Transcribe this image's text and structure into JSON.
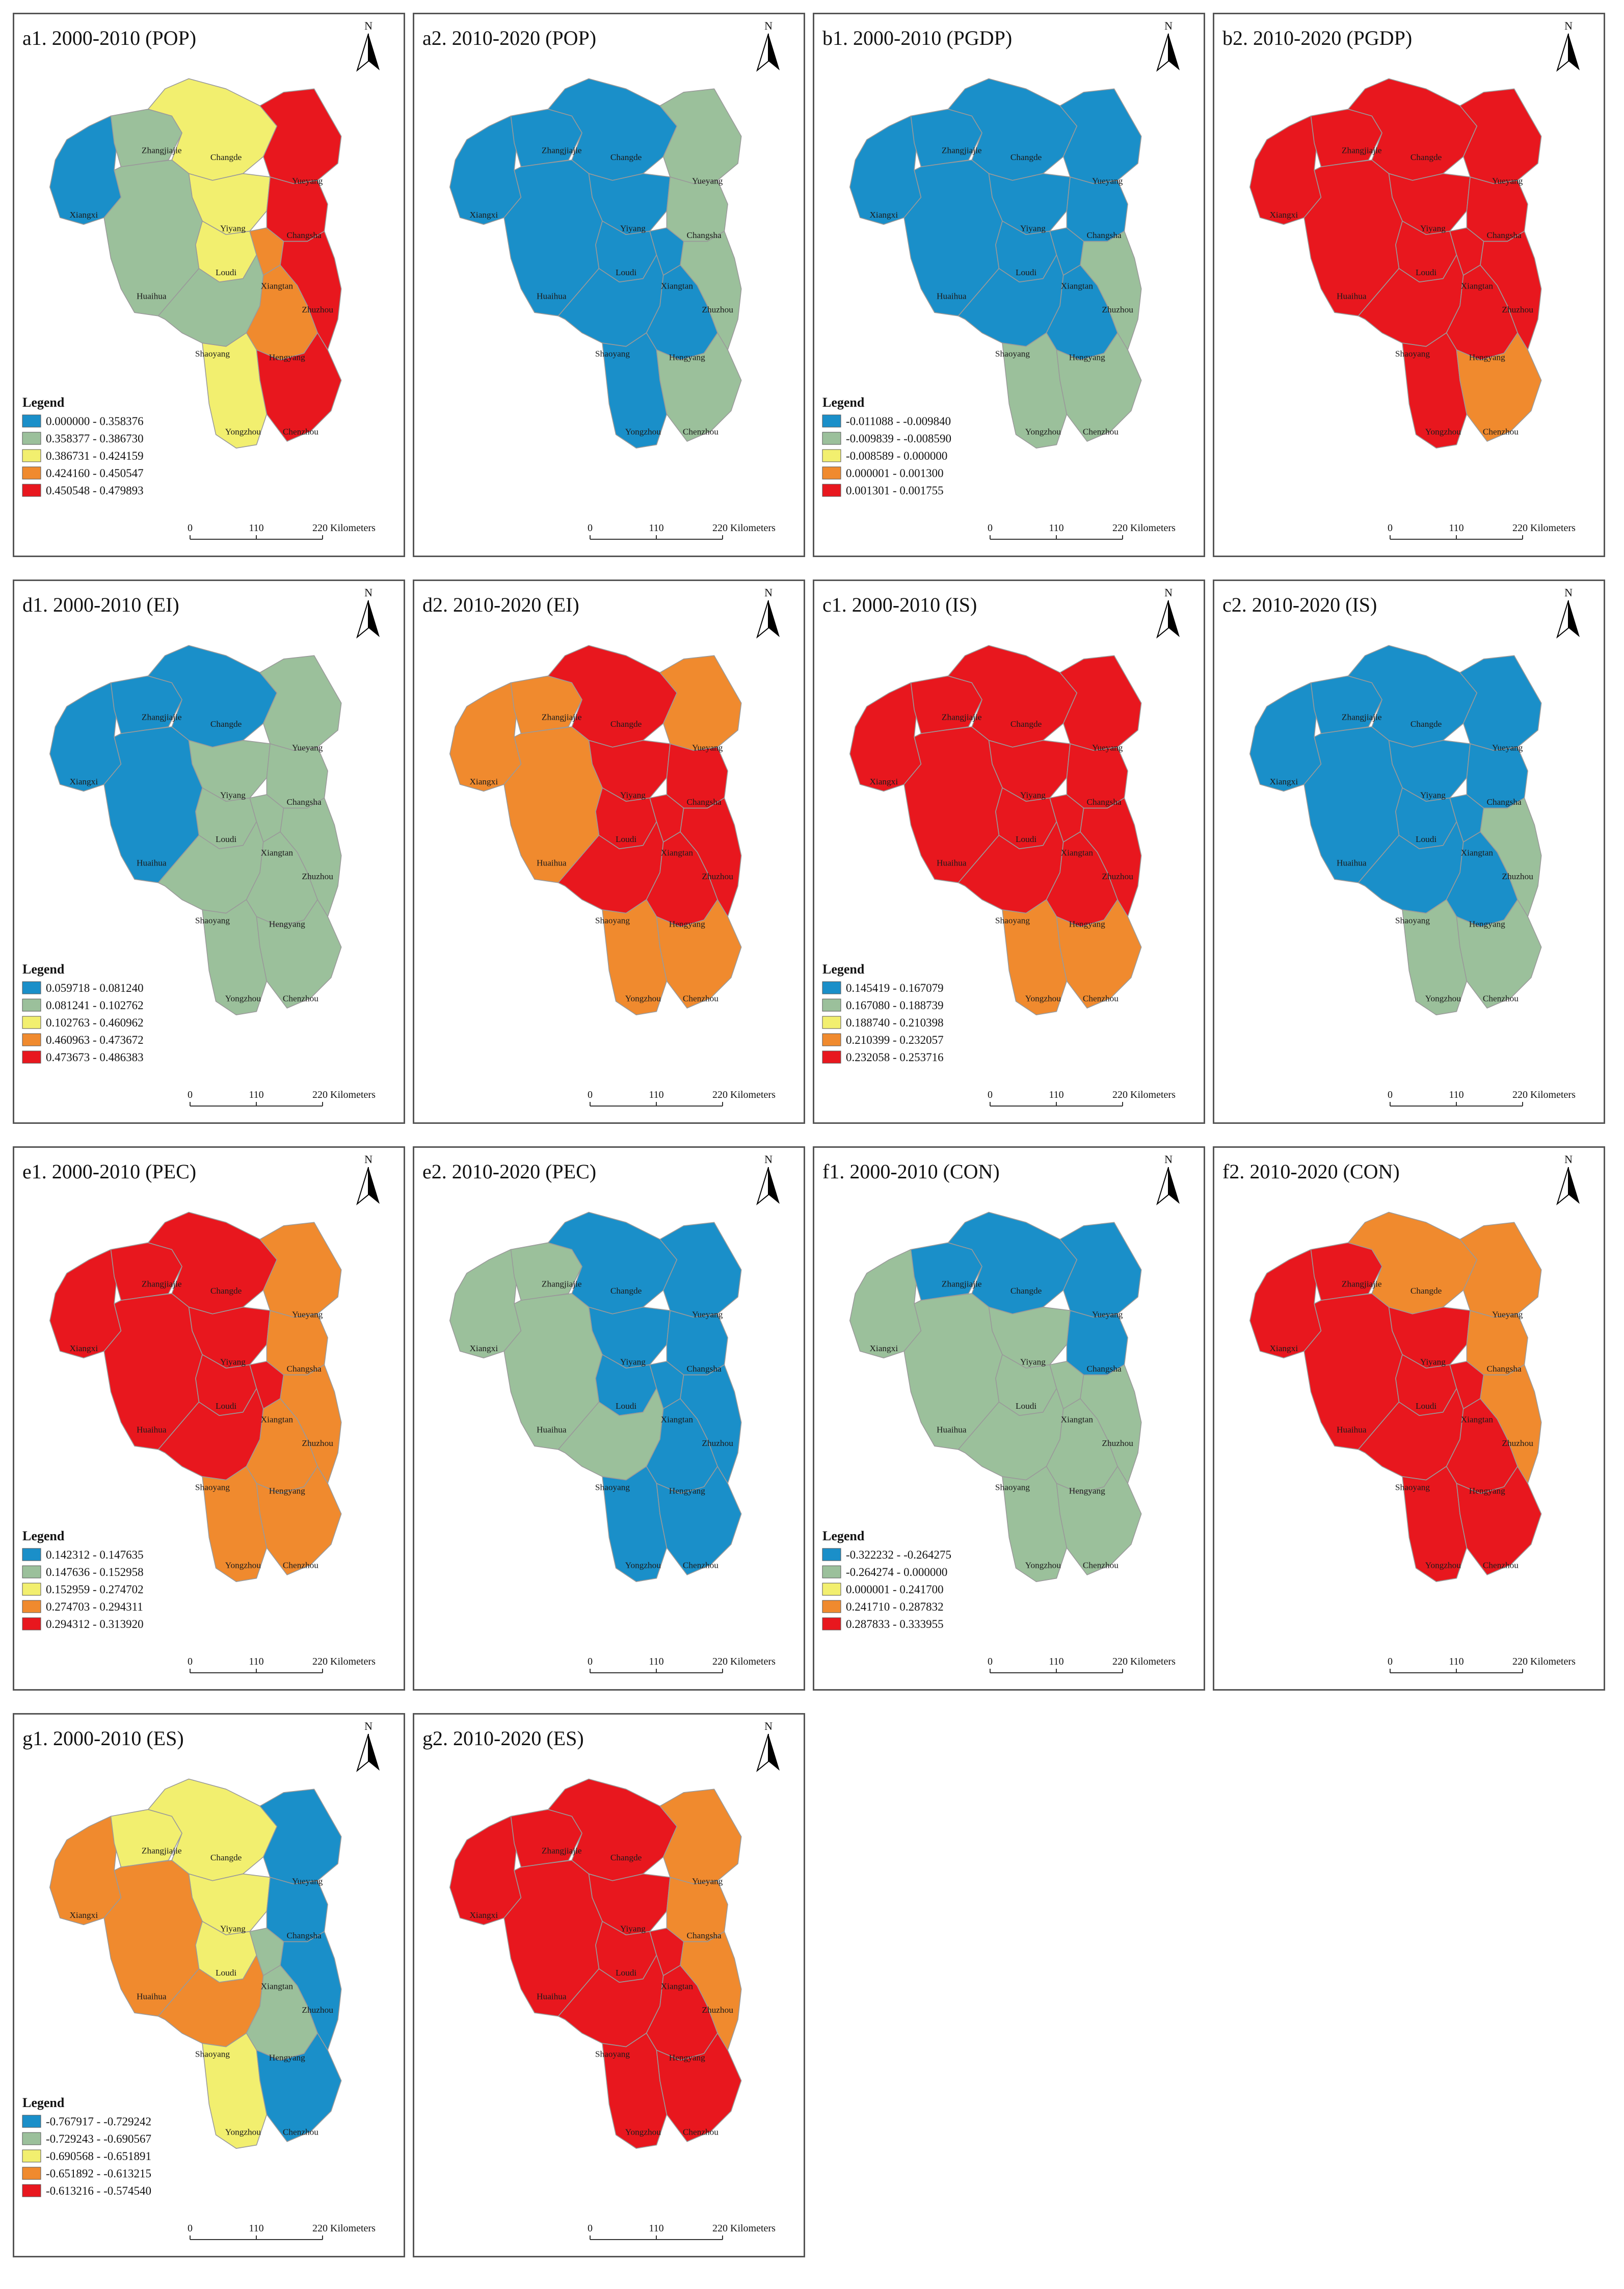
{
  "palette": {
    "blue": "#1a8fc9",
    "green": "#9bc09b",
    "yellow": "#f2ef6f",
    "orange": "#f08a2e",
    "red": "#e8171e"
  },
  "common": {
    "legend_heading": "Legend",
    "north_label": "N",
    "scale_labels": [
      "0",
      "110",
      "220 Kilometers"
    ]
  },
  "cities": [
    "Xiangxi",
    "Zhangjiajie",
    "Changde",
    "Yueyang",
    "Yiyang",
    "Changsha",
    "Loudi",
    "Huaihua",
    "Xiangtan",
    "Zhuzhou",
    "Shaoyang",
    "Hengyang",
    "Yongzhou",
    "Chenzhou"
  ],
  "panels": [
    {
      "id": "a1",
      "title": "a1. 2000-2010 (POP)",
      "legend": [
        "0.000000 - 0.358376",
        "0.358377 - 0.386730",
        "0.386731 - 0.424159",
        "0.424160 - 0.450547",
        "0.450548 - 0.479893"
      ],
      "classes": {
        "Xiangxi": "blue",
        "Zhangjiajie": "green",
        "Changde": "yellow",
        "Yueyang": "red",
        "Yiyang": "yellow",
        "Changsha": "red",
        "Loudi": "yellow",
        "Huaihua": "green",
        "Xiangtan": "orange",
        "Zhuzhou": "red",
        "Shaoyang": "green",
        "Hengyang": "orange",
        "Yongzhou": "yellow",
        "Chenzhou": "red"
      }
    },
    {
      "id": "a2",
      "title": "a2. 2010-2020 (POP)",
      "legend": [],
      "classes": {
        "Xiangxi": "blue",
        "Zhangjiajie": "blue",
        "Changde": "blue",
        "Yueyang": "green",
        "Yiyang": "blue",
        "Changsha": "green",
        "Loudi": "blue",
        "Huaihua": "blue",
        "Xiangtan": "blue",
        "Zhuzhou": "green",
        "Shaoyang": "blue",
        "Hengyang": "blue",
        "Yongzhou": "blue",
        "Chenzhou": "green"
      }
    },
    {
      "id": "b1",
      "title": "b1. 2000-2010 (PGDP)",
      "legend": [
        "-0.011088 - -0.009840",
        "-0.009839 - -0.008590",
        "-0.008589 - 0.000000",
        "0.000001 - 0.001300",
        "0.001301 - 0.001755"
      ],
      "classes": {
        "Xiangxi": "blue",
        "Zhangjiajie": "blue",
        "Changde": "blue",
        "Yueyang": "blue",
        "Yiyang": "blue",
        "Changsha": "blue",
        "Loudi": "blue",
        "Huaihua": "blue",
        "Xiangtan": "blue",
        "Zhuzhou": "green",
        "Shaoyang": "blue",
        "Hengyang": "blue",
        "Yongzhou": "green",
        "Chenzhou": "green"
      }
    },
    {
      "id": "b2",
      "title": "b2. 2010-2020 (PGDP)",
      "legend": [],
      "classes": {
        "Xiangxi": "red",
        "Zhangjiajie": "red",
        "Changde": "red",
        "Yueyang": "red",
        "Yiyang": "red",
        "Changsha": "red",
        "Loudi": "red",
        "Huaihua": "red",
        "Xiangtan": "red",
        "Zhuzhou": "red",
        "Shaoyang": "red",
        "Hengyang": "red",
        "Yongzhou": "red",
        "Chenzhou": "orange"
      }
    },
    {
      "id": "d1",
      "title": "d1. 2000-2010 (EI)",
      "legend": [
        "0.059718 - 0.081240",
        "0.081241 - 0.102762",
        "0.102763 - 0.460962",
        "0.460963 - 0.473672",
        "0.473673 - 0.486383"
      ],
      "classes": {
        "Xiangxi": "blue",
        "Zhangjiajie": "blue",
        "Changde": "blue",
        "Yueyang": "green",
        "Yiyang": "green",
        "Changsha": "green",
        "Loudi": "green",
        "Huaihua": "blue",
        "Xiangtan": "green",
        "Zhuzhou": "green",
        "Shaoyang": "green",
        "Hengyang": "green",
        "Yongzhou": "green",
        "Chenzhou": "green"
      }
    },
    {
      "id": "d2",
      "title": "d2. 2010-2020 (EI)",
      "legend": [],
      "classes": {
        "Xiangxi": "orange",
        "Zhangjiajie": "orange",
        "Changde": "red",
        "Yueyang": "orange",
        "Yiyang": "red",
        "Changsha": "red",
        "Loudi": "red",
        "Huaihua": "orange",
        "Xiangtan": "red",
        "Zhuzhou": "red",
        "Shaoyang": "red",
        "Hengyang": "red",
        "Yongzhou": "orange",
        "Chenzhou": "orange"
      }
    },
    {
      "id": "c1",
      "title": "c1. 2000-2010 (IS)",
      "legend": [
        "0.145419 - 0.167079",
        "0.167080 - 0.188739",
        "0.188740 - 0.210398",
        "0.210399 - 0.232057",
        "0.232058 - 0.253716"
      ],
      "classes": {
        "Xiangxi": "red",
        "Zhangjiajie": "red",
        "Changde": "red",
        "Yueyang": "red",
        "Yiyang": "red",
        "Changsha": "red",
        "Loudi": "red",
        "Huaihua": "red",
        "Xiangtan": "red",
        "Zhuzhou": "red",
        "Shaoyang": "red",
        "Hengyang": "red",
        "Yongzhou": "orange",
        "Chenzhou": "orange"
      }
    },
    {
      "id": "c2",
      "title": "c2. 2010-2020 (IS)",
      "legend": [],
      "classes": {
        "Xiangxi": "blue",
        "Zhangjiajie": "blue",
        "Changde": "blue",
        "Yueyang": "blue",
        "Yiyang": "blue",
        "Changsha": "blue",
        "Loudi": "blue",
        "Huaihua": "blue",
        "Xiangtan": "blue",
        "Zhuzhou": "green",
        "Shaoyang": "blue",
        "Hengyang": "blue",
        "Yongzhou": "green",
        "Chenzhou": "green"
      }
    },
    {
      "id": "e1",
      "title": "e1. 2000-2010 (PEC)",
      "legend": [
        "0.142312 - 0.147635",
        "0.147636 - 0.152958",
        "0.152959 - 0.274702",
        "0.274703 - 0.294311",
        "0.294312 - 0.313920"
      ],
      "classes": {
        "Xiangxi": "red",
        "Zhangjiajie": "red",
        "Changde": "red",
        "Yueyang": "orange",
        "Yiyang": "red",
        "Changsha": "orange",
        "Loudi": "red",
        "Huaihua": "red",
        "Xiangtan": "red",
        "Zhuzhou": "orange",
        "Shaoyang": "red",
        "Hengyang": "orange",
        "Yongzhou": "orange",
        "Chenzhou": "orange"
      }
    },
    {
      "id": "e2",
      "title": "e2. 2010-2020 (PEC)",
      "legend": [],
      "classes": {
        "Xiangxi": "green",
        "Zhangjiajie": "green",
        "Changde": "blue",
        "Yueyang": "blue",
        "Yiyang": "blue",
        "Changsha": "blue",
        "Loudi": "blue",
        "Huaihua": "green",
        "Xiangtan": "blue",
        "Zhuzhou": "blue",
        "Shaoyang": "green",
        "Hengyang": "blue",
        "Yongzhou": "blue",
        "Chenzhou": "blue"
      }
    },
    {
      "id": "f1",
      "title": "f1. 2000-2010 (CON)",
      "legend": [
        "-0.322232 - -0.264275",
        "-0.264274 - 0.000000",
        "0.000001 - 0.241700",
        "0.241710 - 0.287832",
        "0.287833 - 0.333955"
      ],
      "classes": {
        "Xiangxi": "green",
        "Zhangjiajie": "blue",
        "Changde": "blue",
        "Yueyang": "blue",
        "Yiyang": "green",
        "Changsha": "blue",
        "Loudi": "green",
        "Huaihua": "green",
        "Xiangtan": "green",
        "Zhuzhou": "green",
        "Shaoyang": "green",
        "Hengyang": "green",
        "Yongzhou": "green",
        "Chenzhou": "green"
      }
    },
    {
      "id": "f2",
      "title": "f2. 2010-2020 (CON)",
      "legend": [],
      "classes": {
        "Xiangxi": "red",
        "Zhangjiajie": "red",
        "Changde": "orange",
        "Yueyang": "orange",
        "Yiyang": "red",
        "Changsha": "orange",
        "Loudi": "red",
        "Huaihua": "red",
        "Xiangtan": "red",
        "Zhuzhou": "orange",
        "Shaoyang": "red",
        "Hengyang": "red",
        "Yongzhou": "red",
        "Chenzhou": "red"
      }
    },
    {
      "id": "g1",
      "title": "g1. 2000-2010 (ES)",
      "legend": [
        "-0.767917 - -0.729242",
        "-0.729243 - -0.690567",
        "-0.690568 - -0.651891",
        "-0.651892 - -0.613215",
        "-0.613216 - -0.574540"
      ],
      "classes": {
        "Xiangxi": "orange",
        "Zhangjiajie": "yellow",
        "Changde": "yellow",
        "Yueyang": "blue",
        "Yiyang": "yellow",
        "Changsha": "blue",
        "Loudi": "yellow",
        "Huaihua": "orange",
        "Xiangtan": "green",
        "Zhuzhou": "blue",
        "Shaoyang": "orange",
        "Hengyang": "green",
        "Yongzhou": "yellow",
        "Chenzhou": "blue"
      }
    },
    {
      "id": "g2",
      "title": "g2. 2010-2020 (ES)",
      "legend": [],
      "classes": {
        "Xiangxi": "red",
        "Zhangjiajie": "red",
        "Changde": "red",
        "Yueyang": "orange",
        "Yiyang": "red",
        "Changsha": "orange",
        "Loudi": "red",
        "Huaihua": "red",
        "Xiangtan": "red",
        "Zhuzhou": "orange",
        "Shaoyang": "red",
        "Hengyang": "red",
        "Yongzhou": "red",
        "Chenzhou": "red"
      }
    }
  ]
}
